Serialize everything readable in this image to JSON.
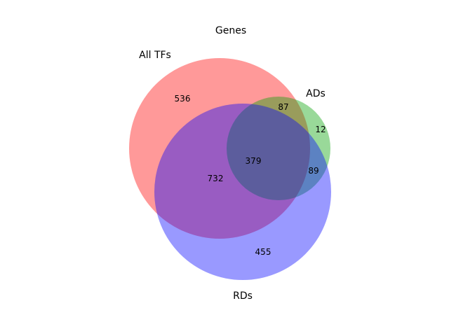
{
  "title": "Genes",
  "sets": [
    {
      "name": "All TFs",
      "color": "#ff0000"
    },
    {
      "name": "ADs",
      "color": "#00a000"
    },
    {
      "name": "RDs",
      "color": "#0000ff"
    }
  ],
  "regions": {
    "all_tfs_only": "536",
    "all_tfs_and_ads": "87",
    "ads_only": "12",
    "all_three": "379",
    "ads_and_rds": "89",
    "all_tfs_and_rds": "732",
    "rds_only": "455"
  }
}
